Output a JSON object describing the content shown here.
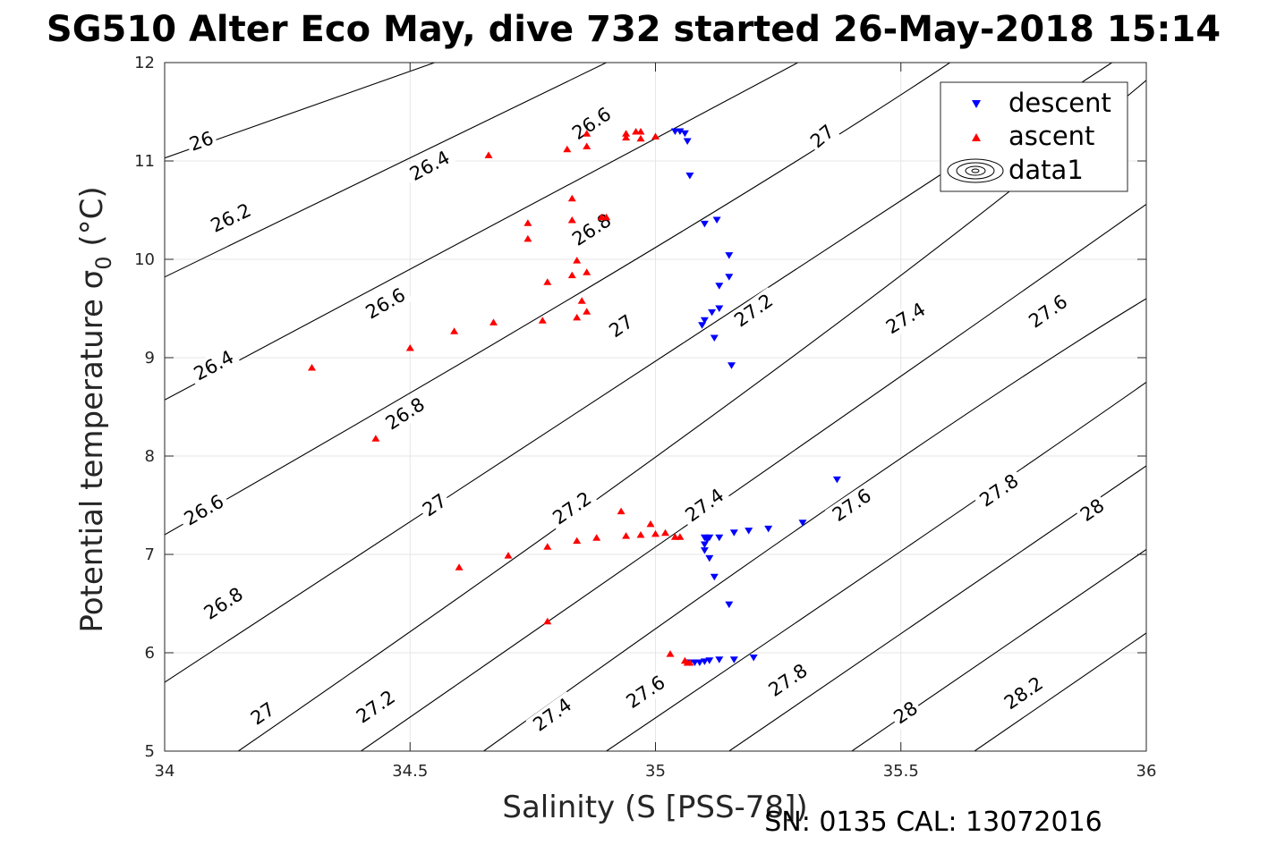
{
  "chart_data": {
    "type": "scatter",
    "title": "SG510 Alter Eco May, dive 732 started 26-May-2018 15:14",
    "xlabel": "Salinity (S [PSS-78])",
    "ylabel": "Potential temperature σ",
    "ylabel_subscript": "0",
    "ylabel_unit": " (°C)",
    "footer": "SN: 0135  CAL: 13072016",
    "xlim": [
      34,
      36
    ],
    "ylim": [
      5,
      12
    ],
    "xticks": [
      34,
      34.5,
      35,
      35.5,
      36
    ],
    "xtick_labels": [
      "34",
      "34.5",
      "35",
      "35.5",
      "36"
    ],
    "yticks": [
      5,
      6,
      7,
      8,
      9,
      10,
      11,
      12
    ],
    "ytick_labels": [
      "5",
      "6",
      "7",
      "8",
      "9",
      "10",
      "11",
      "12"
    ],
    "grid": true,
    "legend_position": "top-right",
    "colors": {
      "descent": "#0000ff",
      "ascent": "#ff0000",
      "contour": "#000000"
    },
    "contours": {
      "name": "data1",
      "levels": [
        {
          "level": 26,
          "label": "26",
          "points": [
            [
              34,
              11.03
            ],
            [
              34.55,
              12.0
            ]
          ],
          "labels_at": [
            [
              34.075,
              11.2
            ]
          ]
        },
        {
          "level": 26.2,
          "label": "26.2",
          "points": [
            [
              34,
              9.82
            ],
            [
              34.9,
              12.0
            ]
          ],
          "labels_at": [
            [
              34.135,
              10.42
            ]
          ]
        },
        {
          "level": 26.4,
          "label": "26.4",
          "points": [
            [
              34,
              8.57
            ],
            [
              35.29,
              12.0
            ]
          ],
          "labels_at": [
            [
              34.1,
              8.92
            ],
            [
              34.54,
              10.95
            ]
          ]
        },
        {
          "level": 26.6,
          "label": "26.6",
          "points": [
            [
              34,
              7.2
            ],
            [
              35.1,
              10.34
            ],
            [
              35.6,
              12.0
            ]
          ],
          "labels_at": [
            [
              34.08,
              7.45
            ],
            [
              34.45,
              9.55
            ],
            [
              34.87,
              11.38
            ]
          ]
        },
        {
          "level": 26.8,
          "label": "26.8",
          "points": [
            [
              34,
              5.7
            ],
            [
              35.2,
              9.6
            ],
            [
              35.93,
              12.0
            ]
          ],
          "labels_at": [
            [
              34.12,
              6.5
            ],
            [
              34.49,
              8.43
            ],
            [
              34.87,
              10.3
            ]
          ]
        },
        {
          "level": 27,
          "label": "27",
          "points": [
            [
              34.15,
              5.0
            ],
            [
              35.4,
              9.3
            ],
            [
              36.0,
              11.82
            ]
          ],
          "labels_at": [
            [
              34.2,
              5.38
            ],
            [
              34.55,
              7.5
            ],
            [
              34.93,
              9.32
            ],
            [
              35.34,
              11.25
            ]
          ]
        },
        {
          "level": 27.2,
          "label": "27.2",
          "points": [
            [
              34.4,
              5.0
            ],
            [
              35.5,
              8.8
            ],
            [
              36.0,
              10.56
            ]
          ],
          "labels_at": [
            [
              34.43,
              5.45
            ],
            [
              34.83,
              7.47
            ],
            [
              35.2,
              9.48
            ]
          ]
        },
        {
          "level": 27.4,
          "label": "27.4",
          "points": [
            [
              34.65,
              5.0
            ],
            [
              35.6,
              8.4
            ],
            [
              36.0,
              9.6
            ]
          ],
          "labels_at": [
            [
              34.79,
              5.37
            ],
            [
              35.1,
              7.5
            ],
            [
              35.51,
              9.4
            ]
          ]
        },
        {
          "level": 27.6,
          "label": "27.6",
          "points": [
            [
              34.9,
              5.0
            ],
            [
              35.7,
              7.7
            ],
            [
              36.0,
              8.75
            ]
          ],
          "labels_at": [
            [
              34.98,
              5.6
            ],
            [
              35.4,
              7.5
            ],
            [
              35.8,
              9.47
            ]
          ]
        },
        {
          "level": 27.8,
          "label": "27.8",
          "points": [
            [
              35.15,
              5.0
            ],
            [
              36.0,
              7.9
            ]
          ],
          "labels_at": [
            [
              35.27,
              5.72
            ],
            [
              35.7,
              7.65
            ]
          ]
        },
        {
          "level": 28,
          "label": "28",
          "points": [
            [
              35.4,
              5.0
            ],
            [
              36.0,
              7.05
            ]
          ],
          "labels_at": [
            [
              35.51,
              5.39
            ],
            [
              35.89,
              7.45
            ]
          ]
        },
        {
          "level": 28.2,
          "label": "28.2",
          "points": [
            [
              35.65,
              5.0
            ],
            [
              36.0,
              6.2
            ]
          ],
          "labels_at": [
            [
              35.75,
              5.59
            ]
          ]
        }
      ]
    },
    "series": [
      {
        "name": "descent",
        "marker": "triangle-down",
        "color": "#0000ff",
        "points": [
          [
            35.04,
            11.3
          ],
          [
            35.05,
            11.3
          ],
          [
            35.06,
            11.28
          ],
          [
            35.065,
            11.2
          ],
          [
            35.07,
            10.85
          ],
          [
            35.1,
            10.36
          ],
          [
            35.125,
            10.4
          ],
          [
            35.15,
            10.04
          ],
          [
            35.15,
            9.82
          ],
          [
            35.13,
            9.73
          ],
          [
            35.13,
            9.5
          ],
          [
            35.115,
            9.46
          ],
          [
            35.1,
            9.38
          ],
          [
            35.095,
            9.33
          ],
          [
            35.12,
            9.2
          ],
          [
            35.155,
            8.92
          ],
          [
            35.1,
            7.17
          ],
          [
            35.105,
            7.15
          ],
          [
            35.11,
            7.17
          ],
          [
            35.13,
            7.17
          ],
          [
            35.16,
            7.22
          ],
          [
            35.19,
            7.24
          ],
          [
            35.23,
            7.26
          ],
          [
            35.3,
            7.32
          ],
          [
            35.37,
            7.76
          ],
          [
            35.1,
            7.1
          ],
          [
            35.1,
            7.04
          ],
          [
            35.11,
            6.96
          ],
          [
            35.12,
            6.77
          ],
          [
            35.15,
            6.49
          ],
          [
            35.07,
            5.9
          ],
          [
            35.08,
            5.9
          ],
          [
            35.09,
            5.9
          ],
          [
            35.1,
            5.91
          ],
          [
            35.11,
            5.92
          ],
          [
            35.13,
            5.93
          ],
          [
            35.16,
            5.93
          ],
          [
            35.2,
            5.95
          ]
        ]
      },
      {
        "name": "ascent",
        "marker": "triangle-up",
        "color": "#ff0000",
        "points": [
          [
            34.3,
            8.9
          ],
          [
            34.43,
            8.18
          ],
          [
            34.5,
            9.1
          ],
          [
            34.59,
            9.27
          ],
          [
            34.67,
            9.36
          ],
          [
            34.66,
            11.06
          ],
          [
            34.74,
            10.37
          ],
          [
            34.74,
            10.21
          ],
          [
            34.78,
            9.77
          ],
          [
            34.77,
            9.38
          ],
          [
            34.82,
            11.12
          ],
          [
            34.83,
            10.62
          ],
          [
            34.83,
            10.4
          ],
          [
            34.84,
            9.99
          ],
          [
            34.83,
            9.84
          ],
          [
            34.85,
            9.58
          ],
          [
            34.86,
            9.47
          ],
          [
            34.84,
            9.41
          ],
          [
            34.86,
            9.87
          ],
          [
            34.89,
            10.43
          ],
          [
            34.9,
            10.43
          ],
          [
            34.86,
            11.15
          ],
          [
            34.86,
            11.28
          ],
          [
            34.94,
            11.28
          ],
          [
            34.94,
            11.24
          ],
          [
            34.97,
            11.3
          ],
          [
            34.97,
            11.23
          ],
          [
            35.0,
            11.25
          ],
          [
            34.96,
            11.3
          ],
          [
            34.6,
            6.87
          ],
          [
            34.7,
            6.99
          ],
          [
            34.78,
            7.08
          ],
          [
            34.84,
            7.14
          ],
          [
            34.88,
            7.17
          ],
          [
            34.93,
            7.44
          ],
          [
            34.94,
            7.19
          ],
          [
            34.97,
            7.2
          ],
          [
            35.0,
            7.21
          ],
          [
            34.99,
            7.31
          ],
          [
            35.02,
            7.22
          ],
          [
            35.04,
            7.18
          ],
          [
            35.05,
            7.18
          ],
          [
            34.78,
            6.32
          ],
          [
            35.03,
            5.99
          ],
          [
            35.06,
            5.92
          ],
          [
            35.065,
            5.9
          ],
          [
            35.07,
            5.9
          ]
        ]
      }
    ],
    "legend": [
      {
        "label": "descent",
        "marker": "triangle-down",
        "color": "#0000ff"
      },
      {
        "label": "ascent",
        "marker": "triangle-up",
        "color": "#ff0000"
      },
      {
        "label": "data1",
        "marker": "contour",
        "color": "#000000"
      }
    ]
  }
}
